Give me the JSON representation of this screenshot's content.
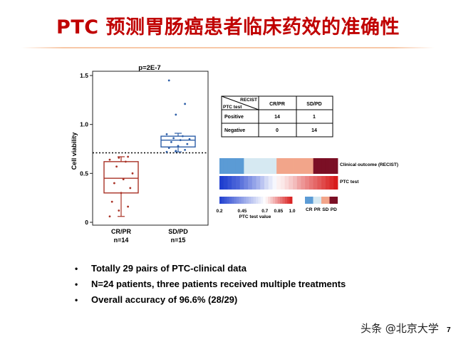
{
  "slide": {
    "title": "PTC 预测胃肠癌患者临床药效的准确性",
    "page_number": "7",
    "watermark": "头条 @北京大学"
  },
  "chart_data": [
    {
      "type": "box",
      "title": "p=2E-7",
      "ylabel": "Cell viability",
      "ylim": [
        0,
        1.5
      ],
      "yticks": [
        0,
        0.5,
        1.0,
        1.5
      ],
      "ytick_labels": [
        "0",
        "0.5",
        "1.0",
        "1.5"
      ],
      "threshold": 0.71,
      "categories": [
        "CR/PR",
        "SD/PD"
      ],
      "category_counts": [
        "n=14",
        "n=15"
      ],
      "colors": [
        "#a93226",
        "#2e5fa8"
      ],
      "boxes": [
        {
          "min": 0.06,
          "q1": 0.3,
          "median": 0.45,
          "q3": 0.62,
          "max": 0.67
        },
        {
          "min": 0.72,
          "q1": 0.77,
          "median": 0.84,
          "q3": 0.88,
          "max": 0.91
        }
      ],
      "points": [
        [
          0.06,
          0.12,
          0.16,
          0.21,
          0.3,
          0.35,
          0.4,
          0.44,
          0.5,
          0.57,
          0.62,
          0.64,
          0.66,
          0.67
        ],
        [
          0.72,
          0.73,
          0.74,
          0.76,
          0.78,
          0.8,
          0.82,
          0.84,
          0.85,
          0.86,
          0.88,
          0.9,
          1.1,
          1.21,
          1.45
        ]
      ]
    },
    {
      "type": "table",
      "corner_col_header": "RECIST",
      "corner_row_header": "PTC test",
      "columns": [
        "CR/PR",
        "SD/PD"
      ],
      "rows": [
        {
          "label": "Positive",
          "values": [
            "14",
            "1"
          ]
        },
        {
          "label": "Negative",
          "values": [
            "0",
            "14"
          ]
        }
      ]
    },
    {
      "type": "heatmap",
      "row_labels": [
        "Clinical outcome (RECIST)",
        "PTC test"
      ],
      "clinical_outcome": [
        "CR",
        "CR",
        "CR",
        "CR",
        "CR",
        "CR",
        "PR",
        "PR",
        "PR",
        "PR",
        "PR",
        "PR",
        "PR",
        "PR",
        "SD",
        "SD",
        "SD",
        "SD",
        "SD",
        "SD",
        "SD",
        "SD",
        "SD",
        "PD",
        "PD",
        "PD",
        "PD",
        "PD",
        "PD"
      ],
      "ptc_values": [
        0.2,
        0.22,
        0.25,
        0.28,
        0.3,
        0.34,
        0.38,
        0.42,
        0.46,
        0.5,
        0.55,
        0.6,
        0.64,
        0.68,
        0.72,
        0.73,
        0.75,
        0.77,
        0.79,
        0.82,
        0.84,
        0.86,
        0.88,
        0.9,
        0.92,
        0.94,
        0.96,
        0.98,
        1.0
      ],
      "colorbar_title": "PTC test value",
      "colorbar_ticks": [
        "0.2",
        "0.45",
        "0.7",
        "0.85",
        "1.0"
      ],
      "outcome_legend": [
        "CR",
        "PR",
        "SD",
        "PD"
      ],
      "outcome_colors": {
        "CR": "#5b9bd5",
        "PR": "#d6e9f2",
        "SD": "#f2a58a",
        "PD": "#7b0f25"
      }
    }
  ],
  "bullets": [
    "Totally  29 pairs of PTC-clinical  data",
    "N=24 patients,  three patients received multiple  treatments",
    "Overall accuracy of 96.6% (28/29)"
  ]
}
